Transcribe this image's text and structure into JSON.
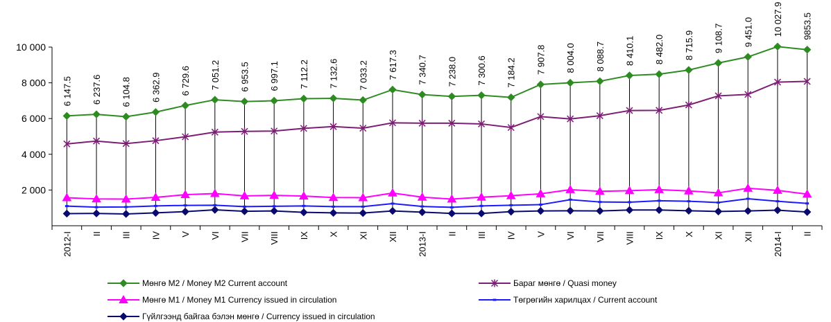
{
  "chart_data": {
    "type": "line",
    "categories": [
      "2012-I",
      "II",
      "III",
      "IV",
      "V",
      "VI",
      "VII",
      "VIII",
      "IX",
      "X",
      "XI",
      "XII",
      "2013-I",
      "II",
      "III",
      "IV",
      "V",
      "VI",
      "VII",
      "VIII",
      "IX",
      "X",
      "XI",
      "XII",
      "2014-I",
      "II"
    ],
    "ylim": [
      0,
      10000
    ],
    "yticks": [
      2000,
      4000,
      6000,
      8000,
      10000
    ],
    "ytick_labels": [
      "2 000",
      "4 000",
      "6 000",
      "8 000",
      "10 000"
    ],
    "data_labels": [
      "6 147.5",
      "6 237.6",
      "6 104.8",
      "6 362.9",
      "6 729.6",
      "7 051.2",
      "6 953.5",
      "6 997.1",
      "7 112.2",
      "7 132.6",
      "7 033.2",
      "7 617.3",
      "7 340.7",
      "7 238.0",
      "7 300.6",
      "7 184.2",
      "7 907.8",
      "8 004.0",
      "8 088.7",
      "8 410.1",
      "8 482.0",
      "8 715.9",
      "9 108.7",
      "9 451.0",
      "10 027.9",
      "9853.5"
    ],
    "series": [
      {
        "name": "Мөнгө М2 /   Money M2  Current account",
        "color": "#2e8b22",
        "marker": "diamond",
        "values": [
          6147.5,
          6237.6,
          6104.8,
          6362.9,
          6729.6,
          7051.2,
          6953.5,
          6997.1,
          7112.2,
          7132.6,
          7033.2,
          7617.3,
          7340.7,
          7238.0,
          7300.6,
          7184.2,
          7907.8,
          8004.0,
          8088.7,
          8410.1,
          8482.0,
          8715.9,
          9108.7,
          9451.0,
          10027.9,
          9853.5
        ]
      },
      {
        "name": "Бараг мөнгө / Quasi money",
        "color": "#7b1e74",
        "marker": "star",
        "values": [
          4580,
          4740,
          4600,
          4760,
          4980,
          5240,
          5280,
          5300,
          5450,
          5550,
          5460,
          5760,
          5740,
          5740,
          5700,
          5500,
          6110,
          5980,
          6160,
          6450,
          6460,
          6760,
          7270,
          7350,
          8040,
          8080
        ]
      },
      {
        "name": "Мөнгө М1 /  Money M1 Currency issued  in circulation",
        "color": "#ff00ff",
        "marker": "triangle",
        "values": [
          1570,
          1500,
          1490,
          1590,
          1740,
          1800,
          1670,
          1700,
          1660,
          1580,
          1570,
          1830,
          1600,
          1490,
          1600,
          1680,
          1790,
          2020,
          1930,
          1960,
          2020,
          1950,
          1840,
          2100,
          1980,
          1770
        ]
      },
      {
        "name": "Төгрөгийн харилцах / Current account",
        "color": "#1a1aff",
        "marker": "dash",
        "values": [
          1100,
          1040,
          1050,
          1110,
          1140,
          1150,
          1070,
          1090,
          1110,
          1070,
          1070,
          1240,
          1080,
          1030,
          1110,
          1150,
          1180,
          1460,
          1330,
          1320,
          1400,
          1370,
          1300,
          1510,
          1370,
          1250
        ]
      },
      {
        "name": "Гүйлгээнд байгаа бэлэн мөнгө / Currency issued  in circulation",
        "color": "#0a0a6e",
        "marker": "diamond",
        "values": [
          680,
          690,
          660,
          720,
          790,
          890,
          810,
          830,
          750,
          720,
          710,
          830,
          760,
          690,
          690,
          790,
          830,
          840,
          830,
          880,
          880,
          840,
          800,
          830,
          870,
          770
        ]
      }
    ],
    "legend_position": "bottom",
    "grid": false
  }
}
